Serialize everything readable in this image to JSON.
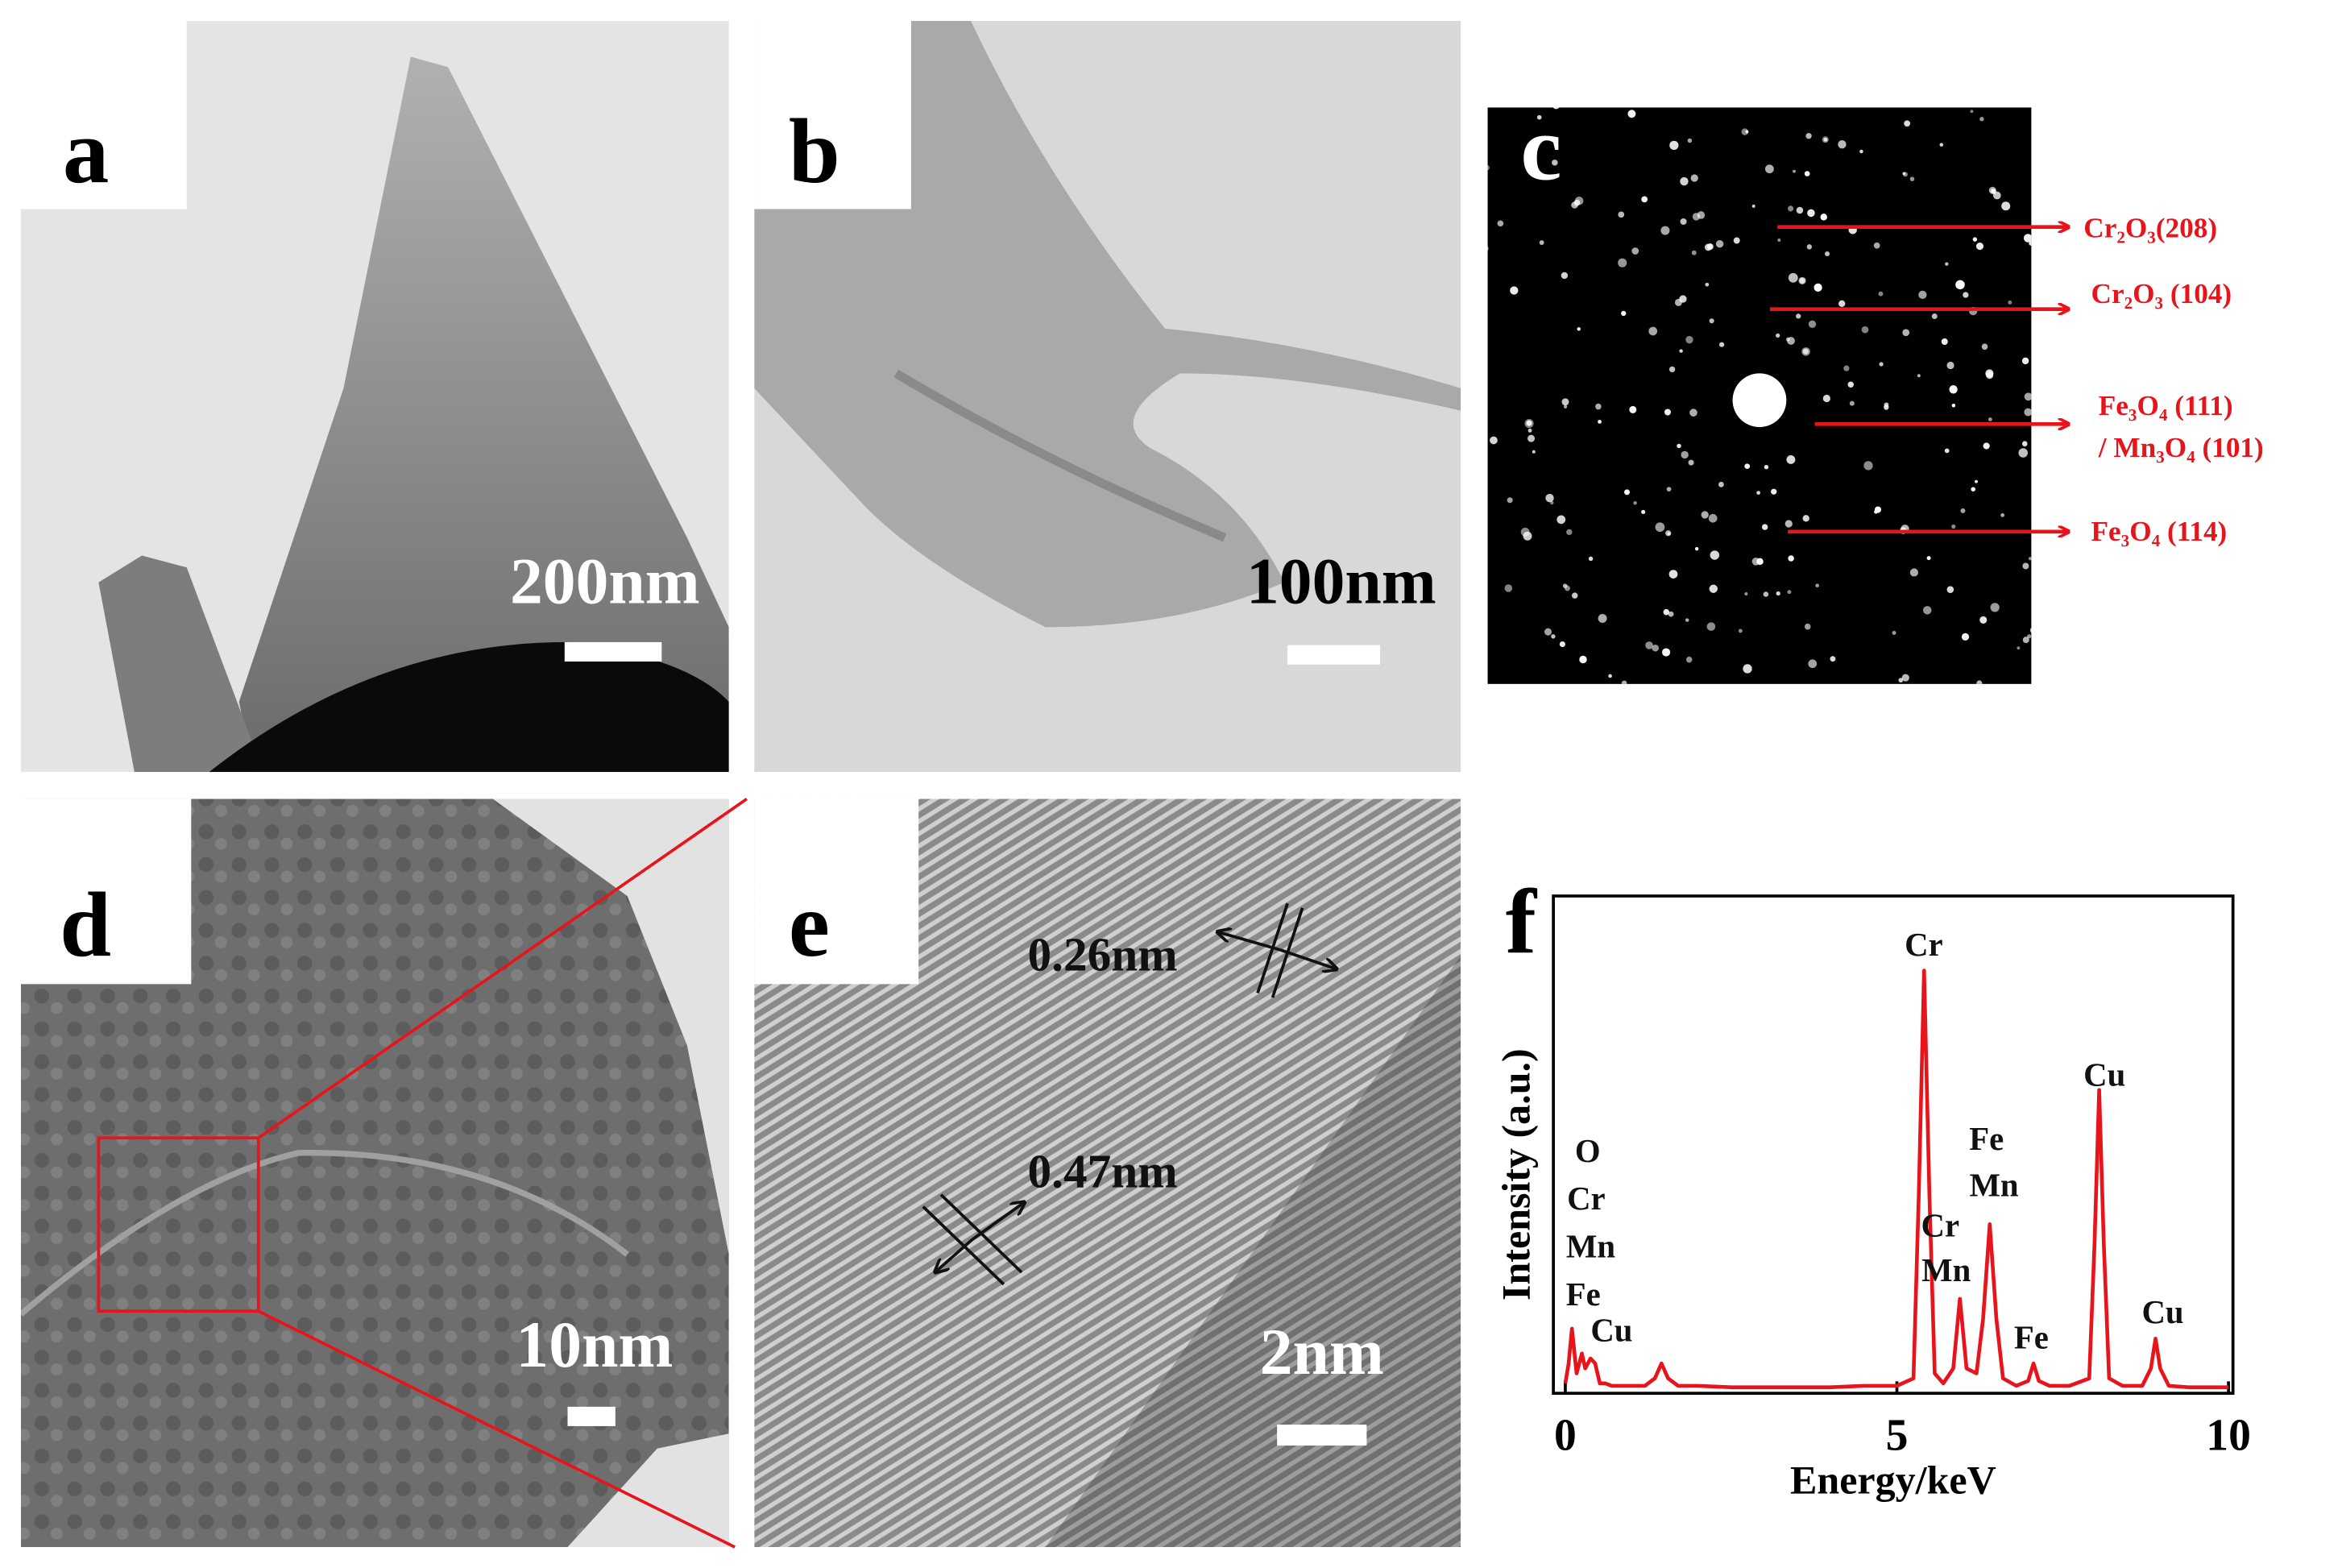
{
  "panels": {
    "a": {
      "label": "a",
      "scale_bar": "200nm"
    },
    "b": {
      "label": "b",
      "scale_bar": "100nm"
    },
    "c": {
      "label": "c"
    },
    "d": {
      "label": "d",
      "scale_bar": "10nm"
    },
    "e": {
      "label": "e",
      "scale_bar": "2nm"
    }
  },
  "diffraction_labels": [
    "Cr₂O₃(208)",
    "Cr₂O₃ (104)",
    "Fe₃O₄ (111)",
    "/ Mn₃O₄ (101)",
    "Fe₃O₄ (114)"
  ],
  "lattice_labels": [
    "0.26nm",
    "0.47nm"
  ],
  "chart_data": {
    "type": "line",
    "label": "f",
    "xlabel": "Energy/keV",
    "ylabel": "Intensity (a.u.)",
    "x": [
      0,
      0.05,
      0.1,
      0.17,
      0.25,
      0.3,
      0.38,
      0.45,
      0.52,
      0.6,
      0.7,
      0.9,
      1.2,
      1.35,
      1.45,
      1.55,
      1.7,
      2.0,
      2.5,
      3.0,
      3.5,
      4.0,
      4.5,
      5.0,
      5.25,
      5.33,
      5.41,
      5.49,
      5.57,
      5.7,
      5.85,
      5.95,
      6.05,
      6.2,
      6.3,
      6.4,
      6.5,
      6.6,
      6.8,
      6.98,
      7.06,
      7.14,
      7.3,
      7.6,
      7.9,
      7.98,
      8.05,
      8.12,
      8.2,
      8.4,
      8.7,
      8.83,
      8.9,
      8.97,
      9.1,
      9.4,
      9.7,
      10
    ],
    "series": [
      {
        "color": "#e8141b",
        "values": [
          2,
          6,
          13,
          4,
          8,
          5,
          7,
          6,
          2,
          2,
          1.5,
          1.5,
          1.5,
          3,
          6,
          3,
          1.5,
          1.5,
          1.2,
          1.2,
          1.2,
          1.2,
          1.5,
          1.5,
          3,
          40,
          85,
          40,
          4,
          2,
          5,
          19,
          5,
          4,
          15,
          34,
          15,
          3,
          1.5,
          2.5,
          6,
          2.5,
          1.5,
          1.5,
          3,
          30,
          61,
          30,
          3,
          1.5,
          1.5,
          5,
          11,
          5,
          1.5,
          1.2,
          1.2,
          1.2
        ]
      }
    ],
    "xlim": [
      0,
      10
    ],
    "xticks": [
      0,
      5,
      10
    ],
    "ylim": [
      0,
      100
    ],
    "annotations": [
      "O",
      "Cr",
      "Mn",
      "Fe",
      "Cu",
      "Cr",
      "Cr",
      "Mn",
      "Fe",
      "Mn",
      "Fe",
      "Cu",
      "Cu"
    ]
  }
}
